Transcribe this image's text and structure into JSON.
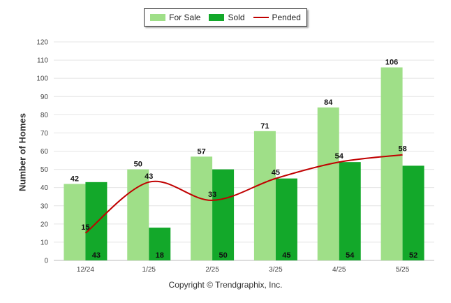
{
  "legend": {
    "items": [
      {
        "label": "For Sale",
        "color": "#9fdf88",
        "kind": "bar"
      },
      {
        "label": "Sold",
        "color": "#13a82a",
        "kind": "bar"
      },
      {
        "label": "Pended",
        "color": "#c00000",
        "kind": "line"
      }
    ]
  },
  "footer": "Copyright © Trendgraphix, Inc.",
  "chart_data": {
    "type": "bar",
    "title": "",
    "xlabel": "",
    "ylabel": "Number of Homes",
    "ylim": [
      0,
      120
    ],
    "yticks": [
      0,
      10,
      20,
      30,
      40,
      50,
      60,
      70,
      80,
      90,
      100,
      110,
      120
    ],
    "grid": true,
    "legend_position": "top-center",
    "categories": [
      "12/24",
      "1/25",
      "2/25",
      "3/25",
      "4/25",
      "5/25"
    ],
    "series": [
      {
        "name": "For Sale",
        "type": "bar",
        "color": "#9fdf88",
        "values": [
          42,
          50,
          57,
          71,
          84,
          106
        ]
      },
      {
        "name": "Sold",
        "type": "bar",
        "color": "#13a82a",
        "values": [
          43,
          18,
          50,
          45,
          54,
          52
        ]
      },
      {
        "name": "Pended",
        "type": "line",
        "color": "#c00000",
        "values": [
          15,
          43,
          33,
          45,
          54,
          58
        ]
      }
    ]
  }
}
